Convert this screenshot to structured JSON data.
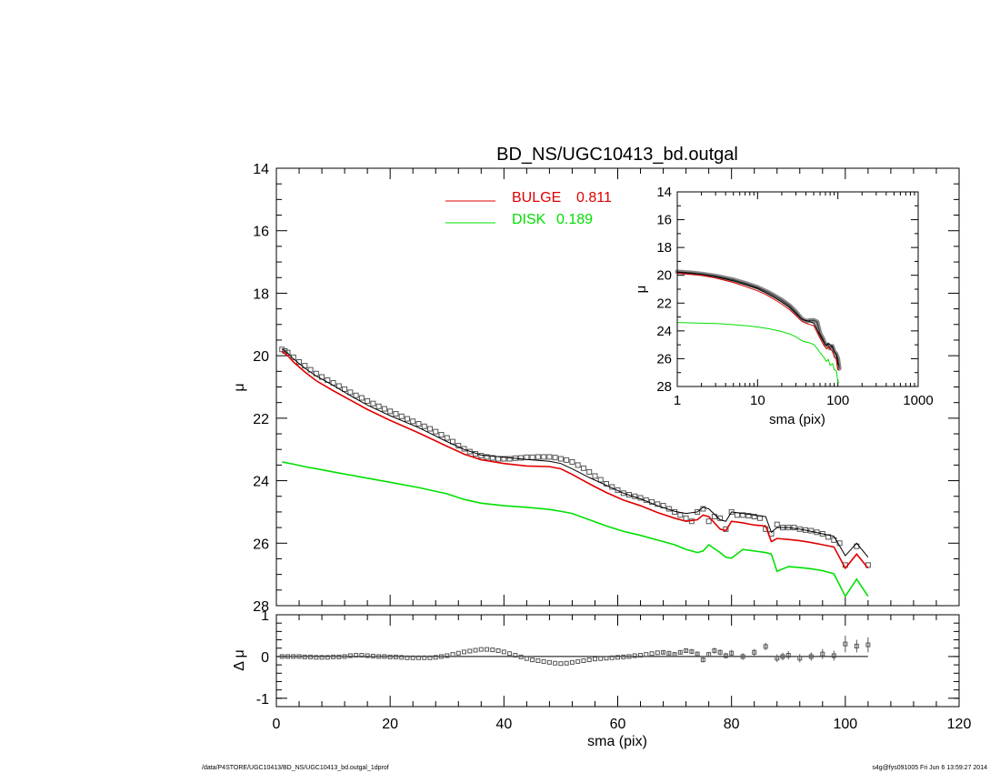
{
  "chart_data": [
    {
      "type": "line",
      "title": "BD_NS/UGC10413_bd.outgal",
      "xlabel": "",
      "ylabel": "μ",
      "xlim": [
        0,
        120
      ],
      "ylim": [
        28,
        14
      ],
      "y_inverted": true,
      "yticks": [
        14,
        16,
        18,
        20,
        22,
        24,
        26,
        28
      ],
      "legend": {
        "placement": "top-center",
        "entries": [
          {
            "label": "BULGE",
            "value": "0.811",
            "color": "#e00000"
          },
          {
            "label": "DISK",
            "value": "0.189",
            "color": "#00e000"
          }
        ]
      },
      "series": [
        {
          "kind": "data",
          "style": "squares",
          "color": "#555555",
          "x": [
            1,
            1.5,
            2,
            3,
            4,
            5,
            6,
            7,
            8,
            9,
            10,
            11,
            12,
            13,
            14,
            15,
            16,
            17,
            18,
            19,
            20,
            21,
            22,
            23,
            24,
            25,
            26,
            27,
            28,
            29,
            30,
            31,
            32,
            33,
            34,
            35,
            36,
            37,
            38,
            39,
            40,
            41,
            42,
            43,
            44,
            45,
            46,
            47,
            48,
            49,
            50,
            51,
            52,
            53,
            54,
            55,
            56,
            57,
            58,
            59,
            60,
            61,
            62,
            63,
            64,
            65,
            66,
            67,
            68,
            69,
            70,
            71,
            72,
            73,
            74,
            75,
            76,
            77,
            78,
            79,
            80,
            81,
            82,
            83,
            84,
            85,
            86,
            87,
            88,
            89,
            90,
            91,
            92,
            93,
            94,
            95,
            96,
            97,
            98,
            99,
            100,
            102,
            104
          ],
          "y": [
            19.8,
            19.85,
            19.9,
            20.05,
            20.2,
            20.32,
            20.45,
            20.57,
            20.68,
            20.78,
            20.87,
            20.97,
            21.07,
            21.17,
            21.27,
            21.35,
            21.45,
            21.53,
            21.62,
            21.7,
            21.78,
            21.86,
            21.94,
            22.02,
            22.1,
            22.18,
            22.26,
            22.34,
            22.43,
            22.53,
            22.63,
            22.75,
            22.88,
            22.98,
            23.07,
            23.14,
            23.2,
            23.24,
            23.27,
            23.3,
            23.3,
            23.3,
            23.28,
            23.27,
            23.25,
            23.25,
            23.24,
            23.24,
            23.24,
            23.26,
            23.3,
            23.34,
            23.4,
            23.5,
            23.6,
            23.72,
            23.85,
            23.97,
            24.1,
            24.2,
            24.3,
            24.4,
            24.45,
            24.5,
            24.55,
            24.62,
            24.68,
            24.75,
            24.8,
            24.9,
            25.0,
            25.1,
            25.2,
            25.3,
            25.0,
            24.9,
            25.3,
            25.15,
            25.2,
            25.55,
            25.0,
            25.1,
            25.1,
            25.12,
            25.15,
            25.2,
            25.55,
            25.7,
            25.4,
            25.5,
            25.5,
            25.5,
            25.55,
            25.58,
            25.6,
            25.65,
            25.7,
            25.8,
            25.9,
            26.0,
            26.7,
            26.1,
            26.7
          ]
        },
        {
          "kind": "total",
          "style": "line",
          "color": "#000000",
          "x": [
            1,
            2,
            3,
            5,
            7,
            10,
            13,
            16,
            20,
            25,
            30,
            33,
            36,
            40,
            44,
            48,
            50,
            52,
            55,
            58,
            61,
            64,
            67,
            70,
            72,
            74,
            75,
            76,
            78,
            79,
            80,
            82,
            84,
            86,
            87,
            88,
            90,
            92,
            94,
            96,
            98,
            100,
            102,
            104
          ],
          "y": [
            19.78,
            19.92,
            20.1,
            20.4,
            20.65,
            20.95,
            21.28,
            21.58,
            21.92,
            22.3,
            22.75,
            23.0,
            23.18,
            23.25,
            23.32,
            23.38,
            23.45,
            23.62,
            23.9,
            24.15,
            24.4,
            24.58,
            24.8,
            24.98,
            25.05,
            25.0,
            24.85,
            24.9,
            25.25,
            25.3,
            25.0,
            25.05,
            25.1,
            25.15,
            25.65,
            25.5,
            25.5,
            25.55,
            25.62,
            25.7,
            25.78,
            26.4,
            26.0,
            26.45
          ]
        },
        {
          "kind": "component",
          "name": "BULGE",
          "style": "line",
          "color": "#e00000",
          "x": [
            1,
            2,
            3,
            5,
            7,
            10,
            13,
            16,
            20,
            25,
            30,
            33,
            36,
            40,
            44,
            48,
            50,
            52,
            55,
            58,
            61,
            64,
            67,
            70,
            72,
            74,
            75,
            76,
            78,
            79,
            80,
            82,
            84,
            86,
            87,
            88,
            90,
            92,
            94,
            96,
            98,
            100,
            102,
            104
          ],
          "y": [
            19.85,
            20.0,
            20.2,
            20.52,
            20.8,
            21.12,
            21.42,
            21.72,
            22.07,
            22.47,
            22.9,
            23.15,
            23.33,
            23.45,
            23.53,
            23.55,
            23.62,
            23.8,
            24.1,
            24.38,
            24.62,
            24.8,
            25.02,
            25.2,
            25.3,
            25.25,
            25.1,
            25.15,
            25.55,
            25.6,
            25.3,
            25.35,
            25.42,
            25.45,
            25.95,
            25.85,
            25.88,
            25.92,
            25.98,
            26.05,
            26.12,
            26.8,
            26.35,
            26.8
          ]
        },
        {
          "kind": "component",
          "name": "DISK",
          "style": "line",
          "color": "#00e000",
          "x": [
            1,
            3,
            5,
            8,
            10,
            13,
            16,
            20,
            25,
            30,
            33,
            36,
            40,
            44,
            48,
            50,
            52,
            55,
            58,
            61,
            64,
            67,
            70,
            72,
            74,
            75,
            76,
            78,
            79,
            80,
            82,
            84,
            86,
            87,
            88,
            90,
            92,
            94,
            96,
            98,
            100,
            102,
            104
          ],
          "y": [
            23.4,
            23.47,
            23.55,
            23.65,
            23.72,
            23.82,
            23.92,
            24.05,
            24.22,
            24.42,
            24.6,
            24.72,
            24.8,
            24.85,
            24.92,
            24.98,
            25.05,
            25.25,
            25.45,
            25.62,
            25.75,
            25.9,
            26.05,
            26.2,
            26.3,
            26.25,
            26.05,
            26.3,
            26.45,
            26.48,
            26.2,
            26.25,
            26.3,
            26.35,
            26.9,
            26.75,
            26.78,
            26.82,
            26.88,
            26.98,
            27.7,
            27.15,
            27.7
          ]
        }
      ]
    },
    {
      "type": "scatter",
      "title": "",
      "xlabel": "sma (pix)",
      "ylabel": "Δ μ",
      "xlim": [
        0,
        120
      ],
      "ylim": [
        -1.2,
        1.0
      ],
      "yticks": [
        -1,
        0,
        1
      ],
      "xticks": [
        0,
        20,
        40,
        60,
        80,
        100,
        120
      ],
      "zero_line": true,
      "x": [
        1,
        2,
        3,
        4,
        5,
        6,
        7,
        8,
        9,
        10,
        11,
        12,
        13,
        14,
        15,
        16,
        17,
        18,
        19,
        20,
        21,
        22,
        23,
        24,
        25,
        26,
        27,
        28,
        29,
        30,
        31,
        32,
        33,
        34,
        35,
        36,
        37,
        38,
        39,
        40,
        41,
        42,
        43,
        44,
        45,
        46,
        47,
        48,
        49,
        50,
        51,
        52,
        53,
        54,
        55,
        56,
        57,
        58,
        59,
        60,
        61,
        62,
        63,
        64,
        65,
        66,
        67,
        68,
        69,
        70,
        71,
        72,
        73,
        74,
        75,
        76,
        77,
        78,
        79,
        80,
        82,
        84,
        86,
        88,
        89,
        90,
        92,
        94,
        96,
        98,
        100,
        102,
        104
      ],
      "y": [
        0.0,
        0.0,
        0.0,
        0.0,
        -0.01,
        -0.01,
        -0.02,
        -0.02,
        -0.02,
        -0.01,
        -0.01,
        0.0,
        0.02,
        0.03,
        0.03,
        0.02,
        0.01,
        0.0,
        0.0,
        -0.01,
        -0.01,
        -0.02,
        -0.03,
        -0.03,
        -0.03,
        -0.03,
        -0.03,
        -0.02,
        0.0,
        0.02,
        0.05,
        0.08,
        0.11,
        0.13,
        0.15,
        0.17,
        0.17,
        0.16,
        0.14,
        0.11,
        0.07,
        0.03,
        -0.01,
        -0.05,
        -0.08,
        -0.1,
        -0.12,
        -0.14,
        -0.16,
        -0.17,
        -0.16,
        -0.14,
        -0.12,
        -0.1,
        -0.08,
        -0.06,
        -0.05,
        -0.04,
        -0.03,
        -0.02,
        -0.01,
        0.0,
        0.02,
        0.03,
        0.05,
        0.07,
        0.09,
        0.1,
        0.08,
        0.05,
        0.1,
        0.14,
        0.12,
        0.06,
        -0.08,
        0.05,
        0.14,
        0.1,
        0.02,
        0.08,
        0.0,
        0.1,
        0.24,
        -0.04,
        0.0,
        0.03,
        -0.04,
        0.0,
        0.06,
        0.02,
        0.3,
        0.25,
        0.28
      ],
      "err": [
        0.02,
        0.02,
        0.02,
        0.02,
        0.02,
        0.02,
        0.02,
        0.02,
        0.02,
        0.02,
        0.02,
        0.02,
        0.02,
        0.02,
        0.02,
        0.02,
        0.02,
        0.02,
        0.02,
        0.02,
        0.02,
        0.02,
        0.02,
        0.02,
        0.02,
        0.02,
        0.02,
        0.02,
        0.02,
        0.02,
        0.02,
        0.02,
        0.02,
        0.02,
        0.02,
        0.02,
        0.02,
        0.02,
        0.02,
        0.02,
        0.02,
        0.02,
        0.02,
        0.02,
        0.02,
        0.02,
        0.02,
        0.02,
        0.02,
        0.02,
        0.02,
        0.02,
        0.02,
        0.02,
        0.02,
        0.02,
        0.02,
        0.02,
        0.02,
        0.02,
        0.02,
        0.02,
        0.02,
        0.03,
        0.03,
        0.03,
        0.03,
        0.04,
        0.04,
        0.04,
        0.05,
        0.05,
        0.06,
        0.06,
        0.06,
        0.06,
        0.07,
        0.07,
        0.07,
        0.08,
        0.08,
        0.08,
        0.09,
        0.09,
        0.09,
        0.1,
        0.1,
        0.1,
        0.12,
        0.12,
        0.2,
        0.15,
        0.18
      ]
    },
    {
      "type": "line",
      "title": "",
      "xlabel": "sma (pix)",
      "ylabel": "μ",
      "x_scale": "log",
      "xlim": [
        1,
        1000
      ],
      "ylim": [
        28,
        14
      ],
      "y_inverted": true,
      "xticks": [
        1,
        10,
        100,
        1000
      ],
      "yticks": [
        14,
        16,
        18,
        20,
        22,
        24,
        26,
        28
      ],
      "placement": "top-right",
      "series": [
        {
          "kind": "data",
          "style": "band",
          "color": "#555555",
          "x": [
            1,
            1.5,
            2,
            3,
            4,
            5,
            7,
            10,
            13,
            16,
            20,
            25,
            30,
            35,
            40,
            45,
            50,
            55,
            60,
            65,
            70,
            75,
            80,
            85,
            90,
            95,
            100,
            104
          ],
          "y": [
            19.75,
            19.82,
            19.9,
            20.05,
            20.2,
            20.32,
            20.57,
            20.87,
            21.17,
            21.45,
            21.78,
            22.18,
            22.63,
            23.1,
            23.3,
            23.25,
            23.24,
            23.35,
            24.2,
            24.55,
            25.0,
            25.0,
            25.25,
            25.1,
            25.5,
            25.65,
            26.0,
            26.7
          ]
        },
        {
          "kind": "total",
          "style": "line",
          "color": "#000000",
          "x": [
            1,
            2,
            3,
            5,
            7,
            10,
            13,
            16,
            20,
            25,
            30,
            36,
            40,
            44,
            50,
            55,
            61,
            67,
            72,
            76,
            80,
            86,
            90,
            96,
            100,
            104
          ],
          "y": [
            19.78,
            19.92,
            20.1,
            20.4,
            20.65,
            20.95,
            21.28,
            21.58,
            21.92,
            22.3,
            22.75,
            23.18,
            23.25,
            23.32,
            23.45,
            23.9,
            24.4,
            24.8,
            25.05,
            24.9,
            25.0,
            25.15,
            25.5,
            25.7,
            26.4,
            26.45
          ]
        },
        {
          "kind": "component",
          "name": "BULGE",
          "style": "line",
          "color": "#e00000",
          "x": [
            1,
            2,
            3,
            5,
            7,
            10,
            13,
            16,
            20,
            25,
            30,
            36,
            40,
            44,
            50,
            55,
            61,
            67,
            72,
            76,
            80,
            86,
            90,
            96,
            100,
            104
          ],
          "y": [
            19.85,
            20.0,
            20.2,
            20.52,
            20.8,
            21.12,
            21.42,
            21.72,
            22.07,
            22.47,
            22.9,
            23.33,
            23.45,
            23.53,
            23.62,
            24.1,
            24.62,
            25.02,
            25.3,
            25.15,
            25.3,
            25.45,
            25.88,
            26.05,
            26.8,
            26.8
          ]
        },
        {
          "kind": "component",
          "name": "DISK",
          "style": "line",
          "color": "#00e000",
          "x": [
            1,
            3,
            5,
            8,
            10,
            13,
            16,
            20,
            25,
            30,
            36,
            40,
            44,
            50,
            55,
            61,
            67,
            72,
            76,
            80,
            86,
            90,
            96,
            100,
            104
          ],
          "y": [
            23.4,
            23.47,
            23.55,
            23.65,
            23.72,
            23.82,
            23.92,
            24.05,
            24.22,
            24.42,
            24.72,
            24.8,
            24.85,
            24.98,
            25.25,
            25.62,
            25.9,
            26.2,
            26.05,
            26.48,
            26.35,
            26.78,
            26.88,
            27.7,
            27.7
          ]
        }
      ]
    }
  ],
  "footer": {
    "left": "/data/P4STORE/UGC10413/BD_NS/UGC10413_bd.outgal_1dprof",
    "right": "s4g@fys091005  Fri Jun  6 13:59:27 2014"
  }
}
